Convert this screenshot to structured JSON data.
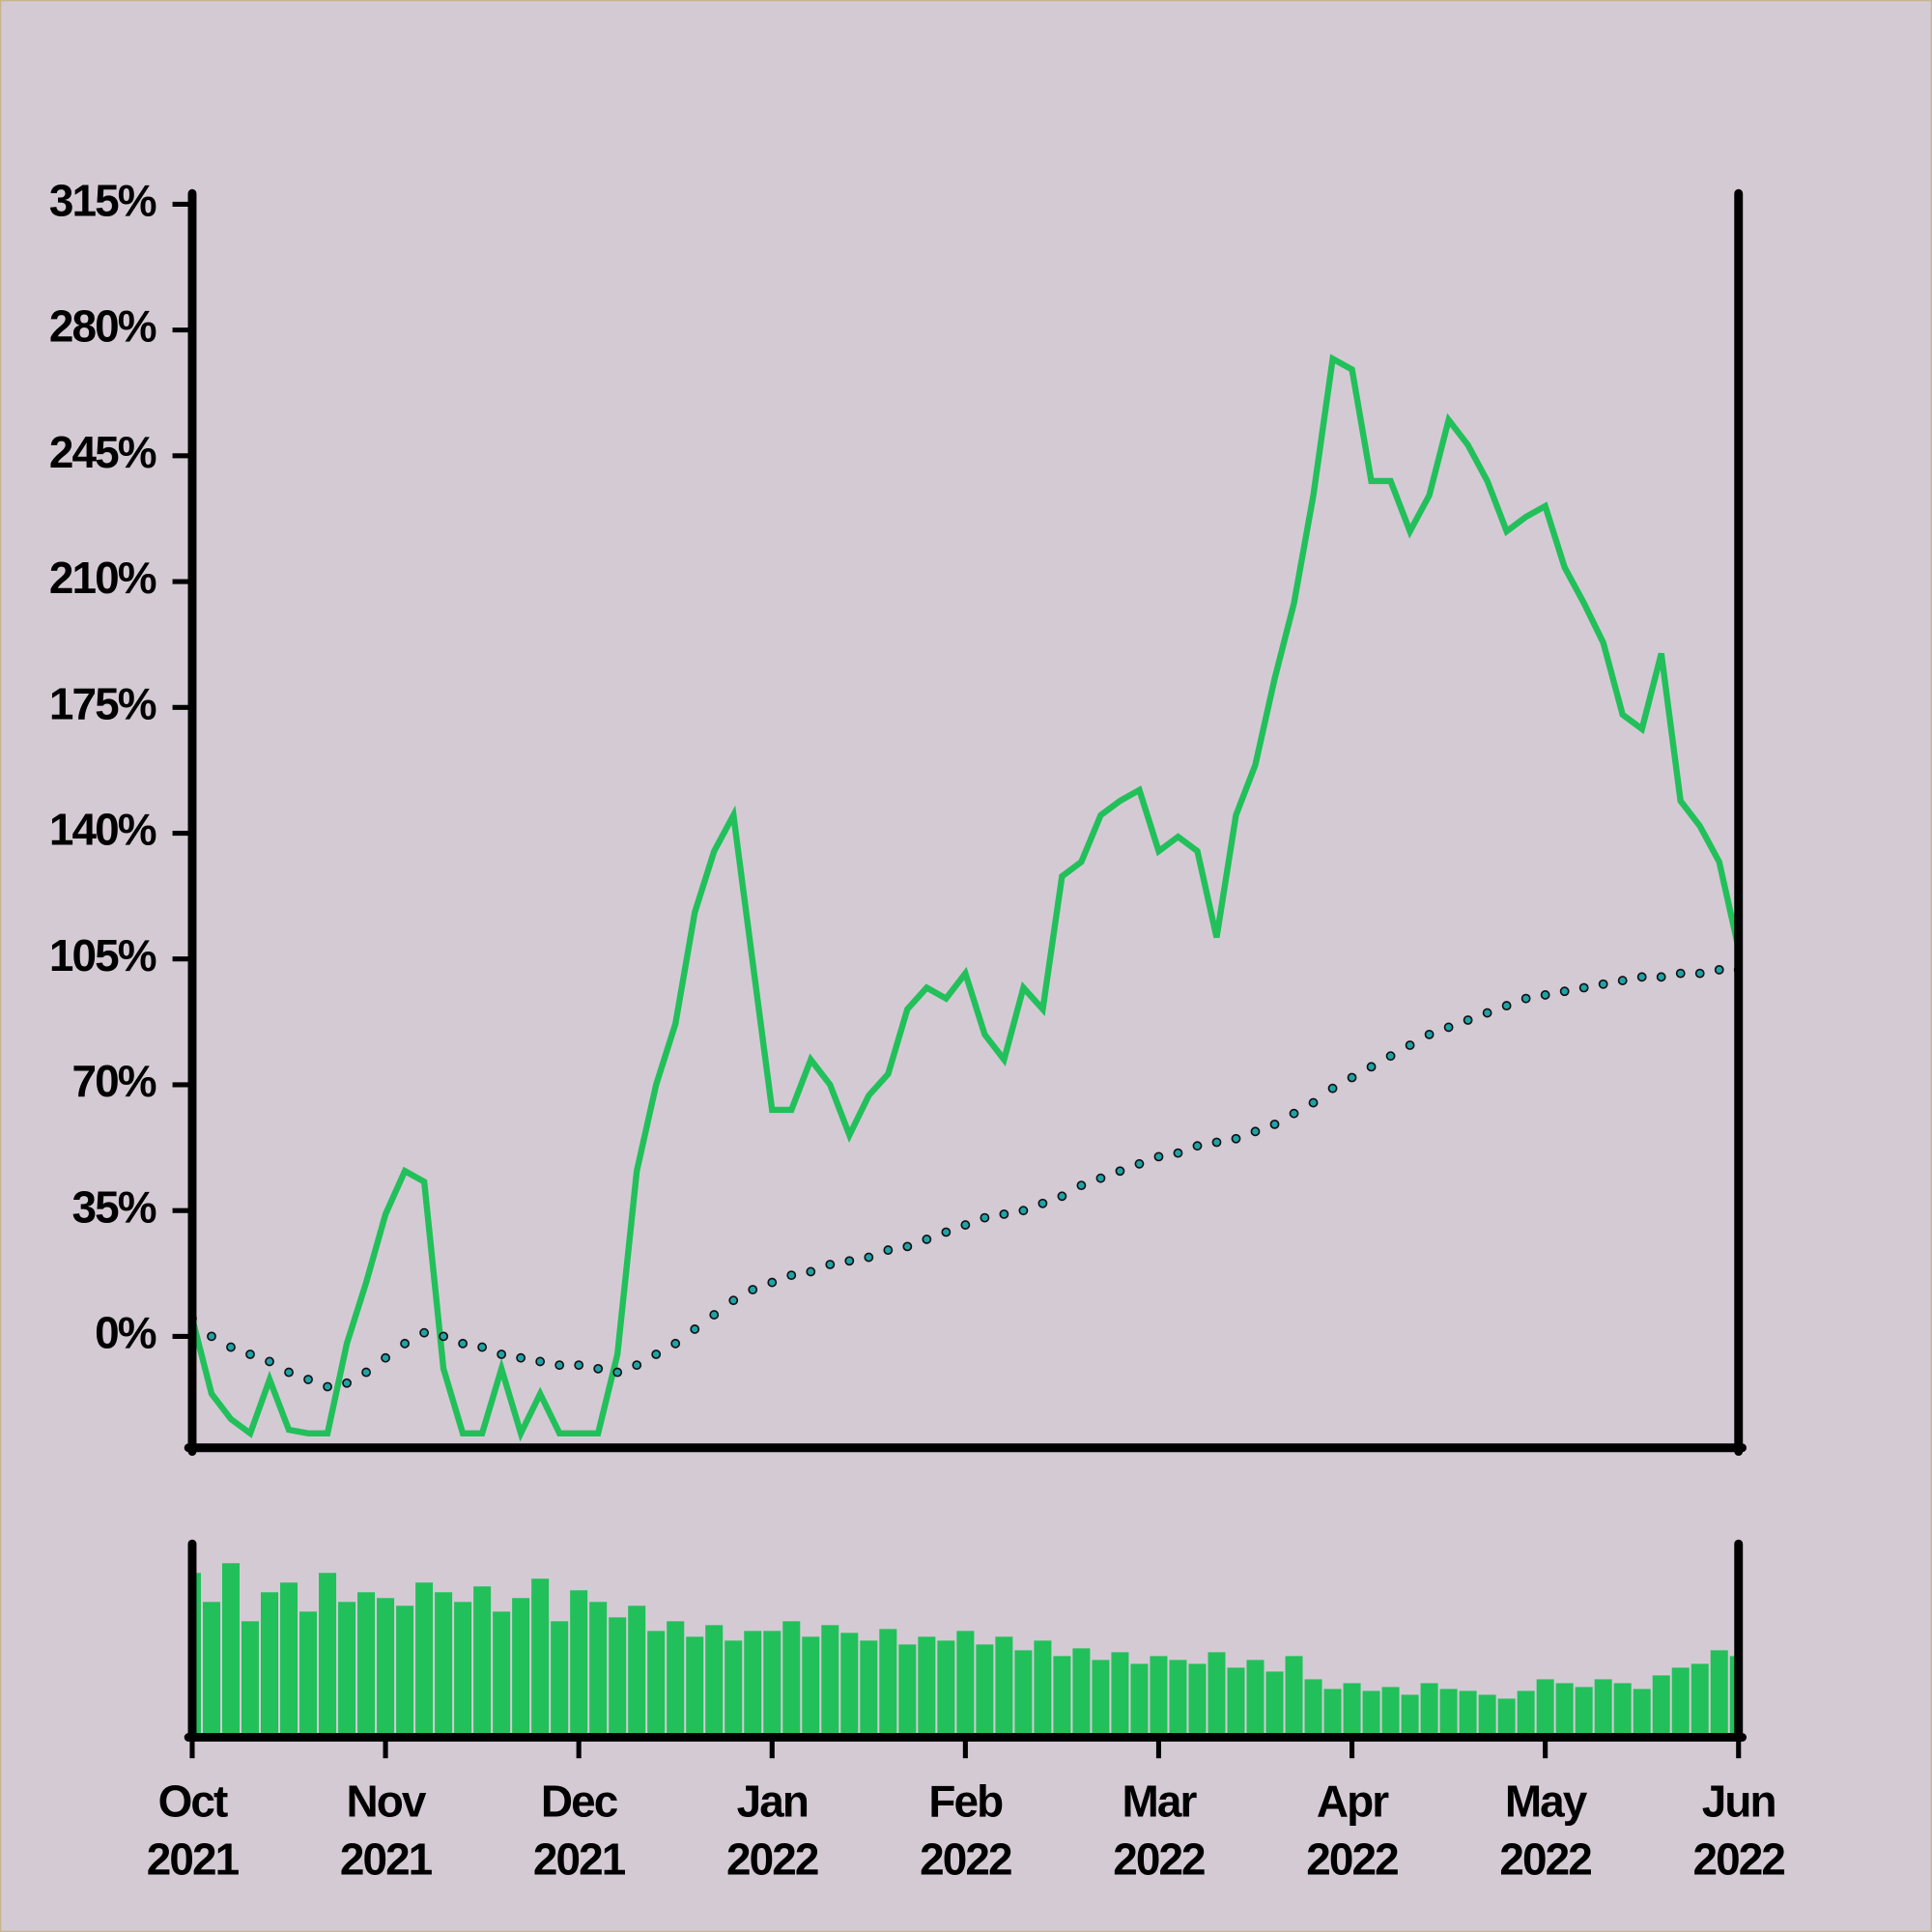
{
  "chart_data": [
    {
      "type": "line",
      "categories": [
        "Oct 2021",
        null,
        null,
        null,
        null,
        null,
        null,
        null,
        null,
        null,
        "Nov 2021",
        null,
        null,
        null,
        null,
        null,
        null,
        null,
        null,
        null,
        "Dec 2021",
        null,
        null,
        null,
        null,
        null,
        null,
        null,
        null,
        null,
        "Jan 2022",
        null,
        null,
        null,
        null,
        null,
        null,
        null,
        null,
        null,
        "Feb 2022",
        null,
        null,
        null,
        null,
        null,
        null,
        null,
        null,
        null,
        "Mar 2022",
        null,
        null,
        null,
        null,
        null,
        null,
        null,
        null,
        null,
        "Apr 2022",
        null,
        null,
        null,
        null,
        null,
        null,
        null,
        null,
        null,
        "May 2022",
        null,
        null,
        null,
        null,
        null,
        null,
        null,
        null,
        null,
        "Jun 2022"
      ],
      "series": [
        {
          "color": "#22c05a",
          "style": "solid",
          "values": [
            5,
            -16,
            -23,
            -27,
            -12,
            -26,
            -27,
            -27,
            -2,
            15,
            34,
            46,
            43,
            -9,
            -27,
            -27,
            -9,
            -27,
            -16,
            -27,
            -27,
            -27,
            -5,
            46,
            70,
            87,
            118,
            135,
            145,
            104,
            63,
            63,
            77,
            70,
            56,
            67,
            73,
            91,
            97,
            94,
            101,
            84,
            77,
            97,
            91,
            128,
            132,
            145,
            149,
            152,
            135,
            139,
            135,
            111,
            145,
            159,
            183,
            204,
            234,
            272,
            269,
            238,
            238,
            224,
            234,
            255,
            248,
            238,
            224,
            228,
            231,
            214,
            204,
            193,
            173,
            169,
            190,
            149,
            142,
            132,
            108
          ]
        },
        {
          "color": "#1fa3a8",
          "style": "dotted",
          "values": [
            5,
            0,
            -3,
            -5,
            -7,
            -10,
            -12,
            -14,
            -13,
            -10,
            -6,
            -2,
            1,
            0,
            -2,
            -3,
            -5,
            -6,
            -7,
            -8,
            -8,
            -9,
            -10,
            -8,
            -5,
            -2,
            2,
            6,
            10,
            13,
            15,
            17,
            18,
            20,
            21,
            22,
            24,
            25,
            27,
            29,
            31,
            33,
            34,
            35,
            37,
            39,
            42,
            44,
            46,
            48,
            50,
            51,
            53,
            54,
            55,
            57,
            59,
            62,
            65,
            69,
            72,
            75,
            78,
            81,
            84,
            86,
            88,
            90,
            92,
            94,
            95,
            96,
            97,
            98,
            99,
            100,
            100,
            101,
            101,
            102,
            102
          ]
        }
      ],
      "ylim": [
        -31,
        318
      ],
      "yticks": [
        {
          "value": 0,
          "label": "0%"
        },
        {
          "value": 35,
          "label": "35%"
        },
        {
          "value": 70,
          "label": "70%"
        },
        {
          "value": 105,
          "label": "105%"
        },
        {
          "value": 140,
          "label": "140%"
        },
        {
          "value": 175,
          "label": "175%"
        },
        {
          "value": 210,
          "label": "210%"
        },
        {
          "value": 245,
          "label": "245%"
        },
        {
          "value": 280,
          "label": "280%"
        },
        {
          "value": 315,
          "label": "315%"
        }
      ]
    },
    {
      "type": "bar",
      "color": "#22c05a",
      "ylim": [
        0,
        100
      ],
      "values": [
        85,
        70,
        90,
        60,
        75,
        80,
        65,
        85,
        70,
        75,
        72,
        68,
        80,
        75,
        70,
        78,
        65,
        72,
        82,
        60,
        76,
        70,
        62,
        68,
        55,
        60,
        52,
        58,
        50,
        55,
        55,
        60,
        52,
        58,
        54,
        50,
        56,
        48,
        52,
        50,
        55,
        48,
        52,
        45,
        50,
        42,
        46,
        40,
        44,
        38,
        42,
        40,
        38,
        44,
        36,
        40,
        34,
        42,
        30,
        25,
        28,
        24,
        26,
        22,
        28,
        25,
        24,
        22,
        20,
        24,
        30,
        28,
        26,
        30,
        28,
        25,
        32,
        36,
        38,
        45,
        42
      ]
    }
  ]
}
